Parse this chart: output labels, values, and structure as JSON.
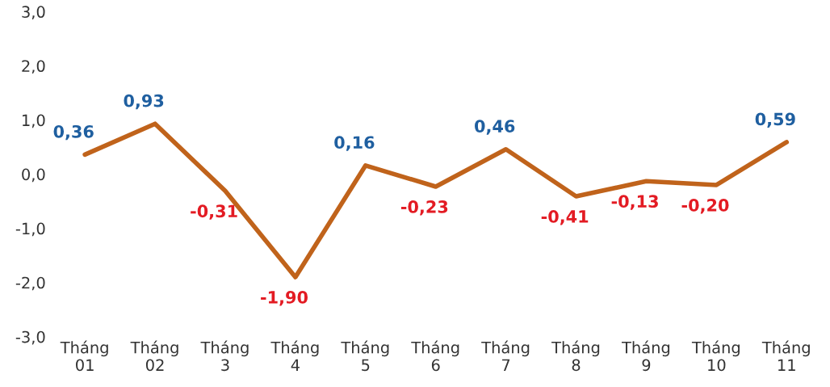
{
  "chart_data": {
    "type": "line",
    "categories": [
      "Tháng\n01",
      "Tháng\n02",
      "Tháng\n3",
      "Tháng\n4",
      "Tháng\n5",
      "Tháng\n6",
      "Tháng\n7",
      "Tháng\n8",
      "Tháng\n9",
      "Tháng\n10",
      "Tháng\n11"
    ],
    "series": [
      {
        "color": "#c0631b",
        "values": [
          0.36,
          0.93,
          -0.31,
          -1.9,
          0.16,
          -0.23,
          0.46,
          -0.41,
          -0.13,
          -0.2,
          0.59
        ],
        "value_labels": [
          "0,36",
          "0,93",
          "-0,31",
          "-1,90",
          "0,16",
          "-0,23",
          "0,46",
          "-0,41",
          "-0,13",
          "-0,20",
          "0,59"
        ]
      }
    ],
    "ylim": [
      -3.0,
      3.0
    ],
    "yticks": [
      {
        "value": -3,
        "label": "-3,0"
      },
      {
        "value": -2,
        "label": "-2,0"
      },
      {
        "value": -1,
        "label": "-1,0"
      },
      {
        "value": 0,
        "label": "0,0"
      },
      {
        "value": 1,
        "label": "1,0"
      },
      {
        "value": 2,
        "label": "2,0"
      },
      {
        "value": 3,
        "label": "3,0"
      }
    ],
    "grid": false,
    "marker": "none",
    "line_style": "solid"
  }
}
